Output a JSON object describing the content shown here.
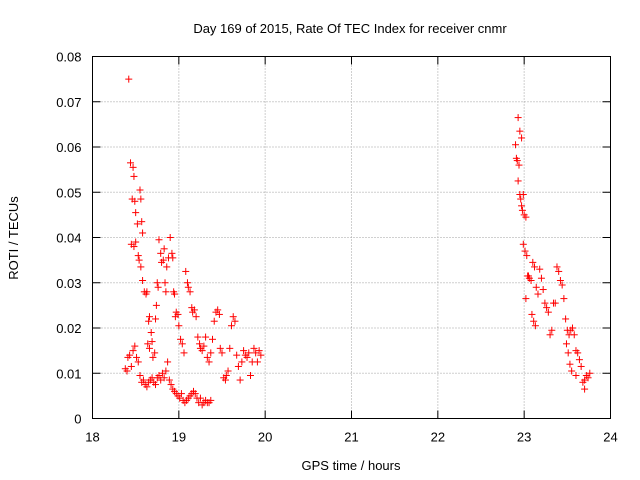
{
  "chart_data": {
    "type": "scatter",
    "title": "Day 169 of 2015, Rate Of TEC Index for receiver cnmr",
    "xlabel": "GPS time / hours",
    "ylabel": "ROTI / TECUs",
    "xlim": [
      18,
      24
    ],
    "ylim": [
      0,
      0.08
    ],
    "grid": true,
    "legend": "none",
    "xticks": [
      18,
      19,
      20,
      21,
      22,
      23,
      24
    ],
    "xtick_labels": [
      "18",
      "19",
      "20",
      "21",
      "22",
      "23",
      "24"
    ],
    "yticks": [
      0,
      0.01,
      0.02,
      0.03,
      0.04,
      0.05,
      0.06,
      0.07,
      0.08
    ],
    "ytick_labels": [
      "0",
      "0.01",
      "0.02",
      "0.03",
      "0.04",
      "0.05",
      "0.06",
      "0.07",
      "0.08"
    ],
    "marker": "+",
    "colors": {
      "series": "#ff0000",
      "grid": "#a0a0a0",
      "frame": "#000000"
    },
    "series": [
      {
        "name": "ROTI",
        "points": [
          [
            18.42,
            0.075
          ],
          [
            18.44,
            0.0565
          ],
          [
            18.47,
            0.0555
          ],
          [
            18.48,
            0.0535
          ],
          [
            18.46,
            0.0485
          ],
          [
            18.49,
            0.048
          ],
          [
            18.55,
            0.0505
          ],
          [
            18.56,
            0.0485
          ],
          [
            18.5,
            0.0455
          ],
          [
            18.52,
            0.043
          ],
          [
            18.57,
            0.0435
          ],
          [
            18.58,
            0.041
          ],
          [
            18.45,
            0.0385
          ],
          [
            18.48,
            0.038
          ],
          [
            18.5,
            0.039
          ],
          [
            18.53,
            0.036
          ],
          [
            18.54,
            0.035
          ],
          [
            18.56,
            0.0335
          ],
          [
            18.58,
            0.0305
          ],
          [
            18.6,
            0.028
          ],
          [
            18.62,
            0.0275
          ],
          [
            18.63,
            0.028
          ],
          [
            18.65,
            0.0215
          ],
          [
            18.66,
            0.0225
          ],
          [
            18.68,
            0.019
          ],
          [
            18.64,
            0.0165
          ],
          [
            18.66,
            0.0155
          ],
          [
            18.69,
            0.017
          ],
          [
            18.7,
            0.0135
          ],
          [
            18.72,
            0.0145
          ],
          [
            18.73,
            0.022
          ],
          [
            18.74,
            0.025
          ],
          [
            18.76,
            0.029
          ],
          [
            18.75,
            0.03
          ],
          [
            18.77,
            0.0395
          ],
          [
            18.79,
            0.0365
          ],
          [
            18.8,
            0.0345
          ],
          [
            18.82,
            0.035
          ],
          [
            18.83,
            0.0375
          ],
          [
            18.84,
            0.03
          ],
          [
            18.85,
            0.028
          ],
          [
            18.86,
            0.0335
          ],
          [
            18.88,
            0.0355
          ],
          [
            18.9,
            0.04
          ],
          [
            18.92,
            0.0365
          ],
          [
            18.93,
            0.0355
          ],
          [
            18.94,
            0.028
          ],
          [
            18.95,
            0.0275
          ],
          [
            18.96,
            0.0225
          ],
          [
            18.97,
            0.0235
          ],
          [
            18.99,
            0.023
          ],
          [
            19.0,
            0.0205
          ],
          [
            19.02,
            0.0175
          ],
          [
            19.04,
            0.0165
          ],
          [
            19.06,
            0.0145
          ],
          [
            19.08,
            0.0325
          ],
          [
            19.1,
            0.03
          ],
          [
            19.11,
            0.029
          ],
          [
            19.13,
            0.028
          ],
          [
            19.15,
            0.0245
          ],
          [
            19.16,
            0.0235
          ],
          [
            19.18,
            0.024
          ],
          [
            19.2,
            0.0225
          ],
          [
            19.22,
            0.018
          ],
          [
            19.24,
            0.0165
          ],
          [
            19.25,
            0.0155
          ],
          [
            19.27,
            0.015
          ],
          [
            19.29,
            0.016
          ],
          [
            19.31,
            0.018
          ],
          [
            19.33,
            0.0135
          ],
          [
            19.35,
            0.0125
          ],
          [
            19.37,
            0.0145
          ],
          [
            19.39,
            0.0175
          ],
          [
            19.41,
            0.0215
          ],
          [
            19.43,
            0.0235
          ],
          [
            19.45,
            0.024
          ],
          [
            19.47,
            0.023
          ],
          [
            19.48,
            0.0155
          ],
          [
            19.5,
            0.0145
          ],
          [
            19.52,
            0.009
          ],
          [
            19.54,
            0.0085
          ],
          [
            19.55,
            0.0095
          ],
          [
            19.57,
            0.0105
          ],
          [
            19.59,
            0.0155
          ],
          [
            19.61,
            0.0205
          ],
          [
            19.63,
            0.0225
          ],
          [
            19.65,
            0.0215
          ],
          [
            19.67,
            0.014
          ],
          [
            19.69,
            0.0115
          ],
          [
            19.71,
            0.0085
          ],
          [
            19.73,
            0.0125
          ],
          [
            19.75,
            0.015
          ],
          [
            19.77,
            0.014
          ],
          [
            19.79,
            0.0135
          ],
          [
            19.81,
            0.0145
          ],
          [
            19.83,
            0.0095
          ],
          [
            19.85,
            0.0125
          ],
          [
            19.87,
            0.0155
          ],
          [
            19.89,
            0.0145
          ],
          [
            19.91,
            0.0125
          ],
          [
            19.93,
            0.015
          ],
          [
            19.95,
            0.014
          ],
          [
            18.38,
            0.011
          ],
          [
            18.4,
            0.0105
          ],
          [
            18.41,
            0.0135
          ],
          [
            18.43,
            0.014
          ],
          [
            18.45,
            0.0115
          ],
          [
            18.47,
            0.015
          ],
          [
            18.49,
            0.016
          ],
          [
            18.51,
            0.0135
          ],
          [
            18.53,
            0.0125
          ],
          [
            18.55,
            0.0095
          ],
          [
            18.57,
            0.008
          ],
          [
            18.59,
            0.0085
          ],
          [
            18.61,
            0.0075
          ],
          [
            18.63,
            0.007
          ],
          [
            18.65,
            0.008
          ],
          [
            18.67,
            0.0085
          ],
          [
            18.69,
            0.009
          ],
          [
            18.71,
            0.008
          ],
          [
            18.73,
            0.0075
          ],
          [
            18.75,
            0.009
          ],
          [
            18.77,
            0.0095
          ],
          [
            18.79,
            0.0085
          ],
          [
            18.81,
            0.01
          ],
          [
            18.83,
            0.009
          ],
          [
            18.85,
            0.0105
          ],
          [
            18.87,
            0.0125
          ],
          [
            18.89,
            0.0085
          ],
          [
            18.91,
            0.0075
          ],
          [
            18.93,
            0.0065
          ],
          [
            18.95,
            0.006
          ],
          [
            18.97,
            0.0055
          ],
          [
            18.99,
            0.005
          ],
          [
            19.01,
            0.0045
          ],
          [
            19.03,
            0.0055
          ],
          [
            19.05,
            0.004
          ],
          [
            19.07,
            0.0035
          ],
          [
            19.09,
            0.004
          ],
          [
            19.11,
            0.0045
          ],
          [
            19.13,
            0.005
          ],
          [
            19.15,
            0.0055
          ],
          [
            19.17,
            0.006
          ],
          [
            19.19,
            0.0055
          ],
          [
            19.21,
            0.0045
          ],
          [
            19.23,
            0.0035
          ],
          [
            19.25,
            0.0045
          ],
          [
            19.27,
            0.003
          ],
          [
            19.29,
            0.0035
          ],
          [
            19.31,
            0.004
          ],
          [
            19.33,
            0.0035
          ],
          [
            19.35,
            0.0035
          ],
          [
            19.37,
            0.004
          ],
          [
            22.9,
            0.0605
          ],
          [
            22.93,
            0.0665
          ],
          [
            22.95,
            0.0635
          ],
          [
            22.97,
            0.062
          ],
          [
            22.91,
            0.0575
          ],
          [
            22.92,
            0.057
          ],
          [
            22.94,
            0.056
          ],
          [
            22.93,
            0.0525
          ],
          [
            22.95,
            0.0495
          ],
          [
            22.96,
            0.0485
          ],
          [
            22.97,
            0.047
          ],
          [
            22.99,
            0.0495
          ],
          [
            22.98,
            0.046
          ],
          [
            23.0,
            0.045
          ],
          [
            23.02,
            0.0445
          ],
          [
            22.99,
            0.0385
          ],
          [
            23.01,
            0.037
          ],
          [
            23.03,
            0.036
          ],
          [
            23.04,
            0.0315
          ],
          [
            23.06,
            0.031
          ],
          [
            23.08,
            0.0305
          ],
          [
            23.02,
            0.0265
          ],
          [
            23.05,
            0.0315
          ],
          [
            23.1,
            0.0345
          ],
          [
            23.12,
            0.0335
          ],
          [
            23.14,
            0.029
          ],
          [
            23.16,
            0.0275
          ],
          [
            23.09,
            0.023
          ],
          [
            23.11,
            0.0215
          ],
          [
            23.13,
            0.0205
          ],
          [
            23.18,
            0.033
          ],
          [
            23.2,
            0.031
          ],
          [
            23.22,
            0.0285
          ],
          [
            23.24,
            0.0255
          ],
          [
            23.26,
            0.0245
          ],
          [
            23.28,
            0.0235
          ],
          [
            23.3,
            0.0185
          ],
          [
            23.32,
            0.0195
          ],
          [
            23.34,
            0.0255
          ],
          [
            23.36,
            0.0255
          ],
          [
            23.38,
            0.0335
          ],
          [
            23.4,
            0.0325
          ],
          [
            23.42,
            0.0305
          ],
          [
            23.44,
            0.0295
          ],
          [
            23.46,
            0.0265
          ],
          [
            23.48,
            0.022
          ],
          [
            23.5,
            0.0195
          ],
          [
            23.52,
            0.0185
          ],
          [
            23.54,
            0.0195
          ],
          [
            23.56,
            0.02
          ],
          [
            23.58,
            0.0185
          ],
          [
            23.6,
            0.015
          ],
          [
            23.62,
            0.0145
          ],
          [
            23.64,
            0.013
          ],
          [
            23.66,
            0.0115
          ],
          [
            23.68,
            0.008
          ],
          [
            23.7,
            0.0085
          ],
          [
            23.72,
            0.0095
          ],
          [
            23.74,
            0.009
          ],
          [
            23.76,
            0.01
          ],
          [
            23.53,
            0.012
          ],
          [
            23.55,
            0.0105
          ],
          [
            23.6,
            0.0095
          ],
          [
            23.7,
            0.0065
          ],
          [
            23.49,
            0.0165
          ],
          [
            23.51,
            0.0145
          ]
        ]
      }
    ]
  }
}
